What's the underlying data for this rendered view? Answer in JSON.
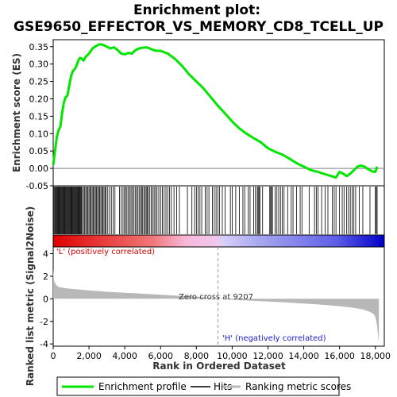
{
  "title_line1": "Enrichment plot:",
  "title_line2": "GSE9650_EFFECTOR_VS_MEMORY_CD8_TCELL_UP",
  "es_ylabel": "Enrichment score (ES)",
  "metric_ylabel": "Ranked list metric (Signal2Noise)",
  "xlabel": "Rank in Ordered Dataset",
  "pos_label": "'L' (positively correlated)",
  "neg_label": "'H' (negatively correlated)",
  "zero_cross_label": "Zero cross at 9207",
  "legend": {
    "enrichment": "Enrichment profile",
    "hits": "Hits",
    "ranking": "Ranking metric scores"
  },
  "colors": {
    "enrichment": "#00e600",
    "positive": "#d10000",
    "negative": "#0000d1",
    "pos_text": "#d10000",
    "neg_text": "#1a1acc",
    "metric_fill": "#b8b8b8"
  },
  "chart_data": {
    "type": "line",
    "x_range": [
      0,
      18500
    ],
    "x_ticks": [
      "0",
      "2,000",
      "4,000",
      "6,000",
      "8,000",
      "10,000",
      "12,000",
      "14,000",
      "16,000",
      "18,000"
    ],
    "x_tick_values": [
      0,
      2000,
      4000,
      6000,
      8000,
      10000,
      12000,
      14000,
      16000,
      18000
    ],
    "dataset_size": 18200,
    "zero_cross": 9207,
    "es": {
      "ylim": [
        -0.05,
        0.37
      ],
      "y_ticks": [
        "-0.05",
        "0.00",
        "0.05",
        "0.10",
        "0.15",
        "0.20",
        "0.25",
        "0.30",
        "0.35"
      ],
      "y_tick_values": [
        -0.05,
        0,
        0.05,
        0.1,
        0.15,
        0.2,
        0.25,
        0.3,
        0.35
      ],
      "x": [
        0,
        100,
        200,
        300,
        400,
        500,
        600,
        700,
        800,
        900,
        1000,
        1100,
        1200,
        1300,
        1400,
        1500,
        1600,
        1700,
        1800,
        1900,
        2000,
        2200,
        2400,
        2600,
        2800,
        3000,
        3200,
        3400,
        3600,
        3800,
        4000,
        4200,
        4400,
        4600,
        4800,
        5000,
        5200,
        5400,
        5600,
        5800,
        6000,
        6400,
        6800,
        7200,
        7600,
        8000,
        8400,
        8800,
        9200,
        9600,
        10000,
        10400,
        10800,
        11200,
        11600,
        12000,
        12400,
        12800,
        13200,
        13600,
        14000,
        14400,
        14800,
        15200,
        15600,
        15800,
        16000,
        16200,
        16400,
        16600,
        16800,
        17000,
        17200,
        17400,
        17600,
        17800,
        18000,
        18100
      ],
      "y": [
        0.01,
        0.05,
        0.09,
        0.11,
        0.12,
        0.16,
        0.19,
        0.205,
        0.21,
        0.24,
        0.265,
        0.28,
        0.285,
        0.295,
        0.31,
        0.318,
        0.315,
        0.31,
        0.32,
        0.325,
        0.33,
        0.345,
        0.352,
        0.357,
        0.355,
        0.35,
        0.345,
        0.348,
        0.34,
        0.33,
        0.328,
        0.332,
        0.33,
        0.34,
        0.345,
        0.347,
        0.348,
        0.345,
        0.34,
        0.338,
        0.338,
        0.33,
        0.315,
        0.295,
        0.27,
        0.25,
        0.23,
        0.205,
        0.18,
        0.158,
        0.135,
        0.115,
        0.1,
        0.087,
        0.075,
        0.058,
        0.048,
        0.04,
        0.028,
        0.015,
        0.005,
        -0.005,
        -0.01,
        -0.017,
        -0.023,
        -0.026,
        -0.01,
        -0.015,
        -0.022,
        -0.015,
        -0.005,
        0.005,
        0.008,
        0.005,
        -0.002,
        -0.008,
        -0.01,
        0.005
      ]
    },
    "hits": [
      20,
      60,
      110,
      150,
      190,
      230,
      270,
      310,
      350,
      390,
      420,
      460,
      500,
      540,
      580,
      620,
      660,
      700,
      740,
      780,
      820,
      860,
      900,
      940,
      980,
      1020,
      1060,
      1100,
      1140,
      1180,
      1220,
      1260,
      1300,
      1340,
      1380,
      1420,
      1460,
      1500,
      1540,
      1580,
      1620,
      1700,
      1760,
      1820,
      1880,
      1940,
      2000,
      2060,
      2120,
      2180,
      2240,
      2300,
      2360,
      2420,
      2480,
      2540,
      2600,
      2660,
      2720,
      2780,
      2840,
      2900,
      2960,
      3050,
      3150,
      3250,
      3350,
      3450,
      3700,
      3800,
      3900,
      3980,
      4050,
      4120,
      4200,
      4280,
      4350,
      4420,
      4500,
      4580,
      4650,
      4720,
      4800,
      4870,
      4940,
      5000,
      5070,
      5140,
      5200,
      5260,
      5320,
      5400,
      5480,
      5560,
      5640,
      5720,
      5800,
      5900,
      6000,
      6100,
      6200,
      6300,
      6400,
      6500,
      6600,
      6750,
      6900,
      7050,
      7500,
      7750,
      7900,
      8000,
      8100,
      8200,
      8300,
      8500,
      8600,
      8700,
      8900,
      9000,
      9100,
      9200,
      9300,
      9450,
      9600,
      9900,
      10000,
      10200,
      10400,
      10600,
      10700,
      10900,
      11000,
      11200,
      11300,
      11400,
      11450,
      11500,
      11550,
      11700,
      12100,
      12150,
      12200,
      12250,
      12400,
      12500,
      12600,
      12700,
      12800,
      12900,
      13100,
      13300,
      13400,
      13600,
      13800,
      13900,
      14300,
      14600,
      14700,
      14800,
      15000,
      15200,
      15350,
      15600,
      15700,
      15800,
      16000,
      16150,
      16250,
      16400,
      16500,
      16600,
      16700,
      16800,
      16900,
      17100,
      17300,
      17700,
      18000,
      18050,
      18100
    ],
    "metric": {
      "ylim": [
        -4.2,
        4.6
      ],
      "y_ticks": [
        "4",
        "2",
        "0",
        "-2",
        "-4"
      ],
      "y_tick_values": [
        4,
        2,
        0,
        -2,
        -4
      ],
      "x": [
        0,
        50,
        150,
        300,
        600,
        1000,
        2000,
        3000,
        4000,
        5000,
        6000,
        7000,
        8000,
        8600,
        9207,
        10000,
        11000,
        12000,
        13000,
        14000,
        15000,
        16000,
        16800,
        17300,
        17700,
        17900,
        18000,
        18080,
        18150,
        18200
      ],
      "y": [
        2.6,
        1.6,
        1.25,
        1.05,
        0.95,
        0.88,
        0.74,
        0.62,
        0.54,
        0.45,
        0.36,
        0.27,
        0.19,
        0.12,
        0.0,
        -0.08,
        -0.16,
        -0.24,
        -0.32,
        -0.42,
        -0.52,
        -0.65,
        -0.8,
        -0.95,
        -1.15,
        -1.35,
        -1.6,
        -2.2,
        -3.2,
        -3.9
      ]
    }
  }
}
